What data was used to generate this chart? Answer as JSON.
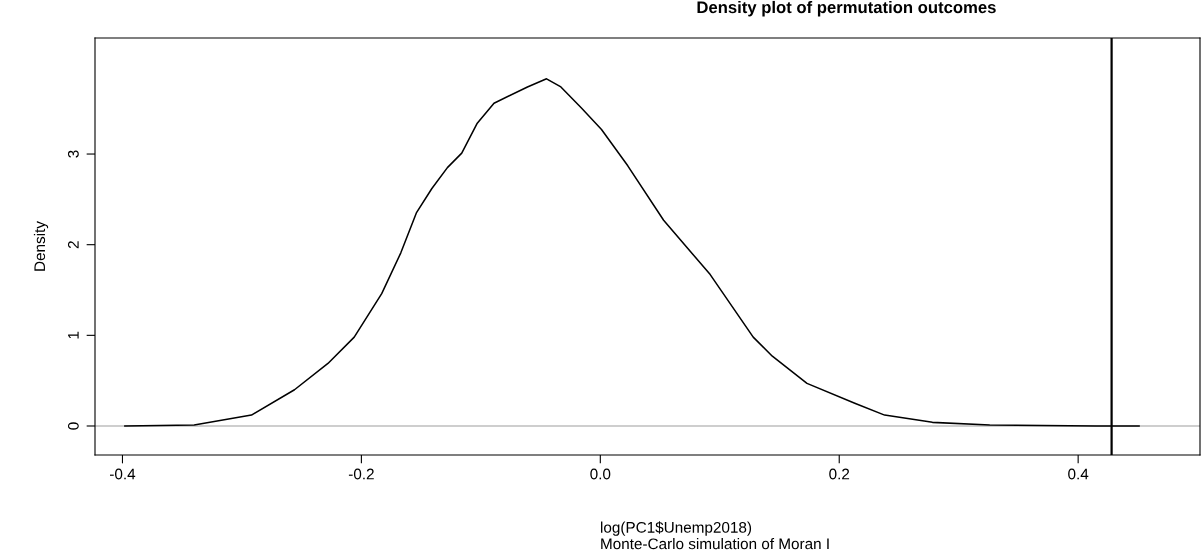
{
  "chart_data": {
    "type": "line",
    "title": "Density plot of permutation outcomes",
    "xlabel": "log(PC1$Unemp2018)\nMonte-Carlo simulation of Moran I",
    "ylabel": "Density",
    "x": [
      -0.398,
      -0.34,
      -0.292,
      -0.256,
      -0.228,
      -0.206,
      -0.183,
      -0.167,
      -0.154,
      -0.141,
      -0.128,
      -0.116,
      -0.103,
      -0.089,
      -0.061,
      -0.045,
      -0.033,
      -0.016,
      0.001,
      0.023,
      0.053,
      0.092,
      0.128,
      0.144,
      0.173,
      0.213,
      0.238,
      0.278,
      0.326,
      0.415,
      0.451
    ],
    "series": [
      {
        "color": "#000000",
        "values": [
          0.0,
          0.01,
          0.12,
          0.4,
          0.69,
          0.98,
          1.46,
          1.91,
          2.35,
          2.62,
          2.85,
          3.01,
          3.34,
          3.56,
          3.74,
          3.83,
          3.74,
          3.51,
          3.27,
          2.87,
          2.27,
          1.67,
          0.98,
          0.77,
          0.47,
          0.25,
          0.12,
          0.04,
          0.01,
          0.0,
          0.0
        ]
      }
    ],
    "xlim": [
      -0.423,
      0.502
    ],
    "ylim": [
      -0.32,
      4.28
    ],
    "xticks": [
      {
        "value": -0.4,
        "label": "-0.4"
      },
      {
        "value": -0.2,
        "label": "-0.2"
      },
      {
        "value": 0,
        "label": "0.0"
      },
      {
        "value": 0.2,
        "label": "0.2"
      },
      {
        "value": 0.4,
        "label": "0.4"
      }
    ],
    "yticks": [
      0,
      1,
      2,
      3
    ],
    "ref_lines": [
      {
        "axis": "y",
        "value": 0,
        "color": "#bebebe"
      },
      {
        "axis": "x",
        "value": 0.428,
        "color": "#000000"
      }
    ],
    "grid": false,
    "legend": false,
    "marker": "none",
    "line_style": "solid"
  }
}
